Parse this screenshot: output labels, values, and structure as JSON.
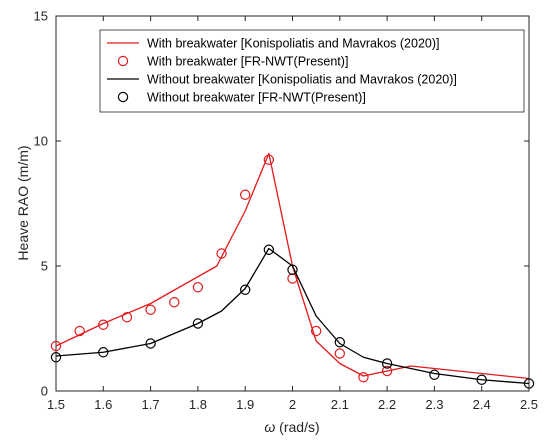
{
  "chart_data": {
    "type": "line",
    "title": "",
    "xlabel_symbol": "ω",
    "xlabel_unit": "(rad/s)",
    "ylabel": "Heave RAO (m/m)",
    "xlim": [
      1.5,
      2.5
    ],
    "ylim": [
      0,
      15
    ],
    "x_ticks": [
      1.5,
      1.6,
      1.7,
      1.8,
      1.9,
      2.0,
      2.1,
      2.2,
      2.3,
      2.4,
      2.5
    ],
    "x_tick_labels": [
      "1.5",
      "1.6",
      "1.7",
      "1.8",
      "1.9",
      "2",
      "2.1",
      "2.2",
      "2.3",
      "2.4",
      "2.5"
    ],
    "y_ticks": [
      0,
      5,
      10,
      15
    ],
    "y_tick_labels": [
      "0",
      "5",
      "10",
      "15"
    ],
    "grid": false,
    "legend_position": "top",
    "series": [
      {
        "name": "With breakwater [Konispoliatis and Mavrakos (2020)]",
        "style": "line",
        "color": "#e31a1c",
        "x": [
          1.5,
          1.6,
          1.7,
          1.84,
          1.9,
          1.95,
          2.0,
          2.05,
          2.1,
          2.15,
          2.25,
          2.5
        ],
        "y": [
          1.8,
          2.7,
          3.5,
          5.0,
          7.2,
          9.5,
          5.0,
          2.0,
          1.1,
          0.6,
          1.0,
          0.5
        ]
      },
      {
        "name": "With breakwater [FR-NWT(Present)]",
        "style": "marker",
        "color": "#e31a1c",
        "x": [
          1.5,
          1.55,
          1.6,
          1.65,
          1.7,
          1.75,
          1.8,
          1.85,
          1.9,
          1.95,
          2.0,
          2.05,
          2.1,
          2.15,
          2.2
        ],
        "y": [
          1.8,
          2.4,
          2.65,
          2.95,
          3.25,
          3.55,
          4.15,
          5.5,
          7.85,
          9.25,
          4.5,
          2.4,
          1.5,
          0.55,
          0.8
        ]
      },
      {
        "name": "Without breakwater [Konispoliatis and Mavrakos (2020)]",
        "style": "line",
        "color": "#000000",
        "x": [
          1.5,
          1.6,
          1.7,
          1.8,
          1.85,
          1.9,
          1.95,
          2.0,
          2.05,
          2.1,
          2.15,
          2.2,
          2.3,
          2.4,
          2.5
        ],
        "y": [
          1.4,
          1.55,
          1.9,
          2.7,
          3.2,
          4.1,
          5.7,
          5.0,
          3.0,
          1.9,
          1.35,
          1.1,
          0.7,
          0.45,
          0.3
        ]
      },
      {
        "name": "Without breakwater [FR-NWT(Present)]",
        "style": "marker",
        "color": "#000000",
        "x": [
          1.5,
          1.6,
          1.7,
          1.8,
          1.9,
          1.95,
          2.0,
          2.1,
          2.2,
          2.3,
          2.4,
          2.5
        ],
        "y": [
          1.35,
          1.55,
          1.9,
          2.7,
          4.05,
          5.65,
          4.85,
          1.95,
          1.1,
          0.65,
          0.45,
          0.3
        ]
      }
    ]
  }
}
